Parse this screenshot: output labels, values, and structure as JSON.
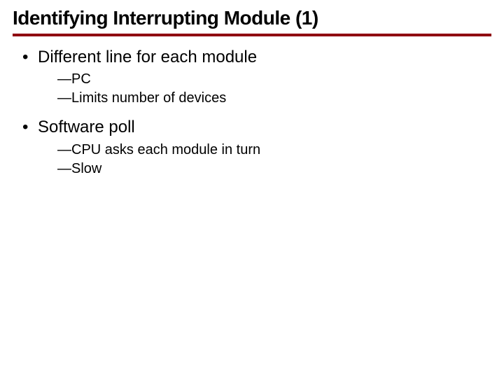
{
  "title": "Identifying Interrupting Module (1)",
  "rule_color": "#900010",
  "items": [
    {
      "text": "Different line for each module",
      "sub": [
        "—PC",
        "—Limits number of devices"
      ]
    },
    {
      "text": "Software poll",
      "sub": [
        "—CPU asks each module in turn",
        "—Slow"
      ]
    }
  ]
}
